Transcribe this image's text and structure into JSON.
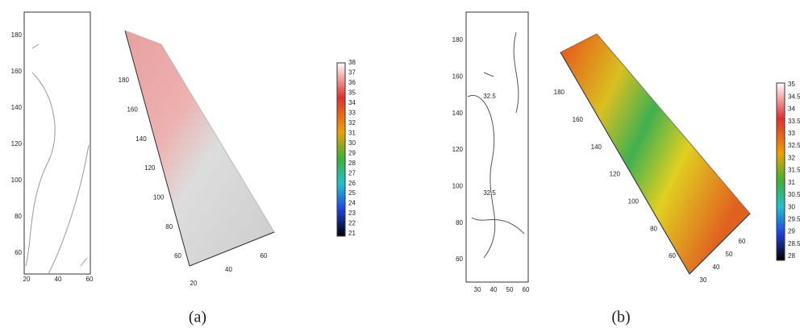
{
  "panels": [
    {
      "caption": "(a)",
      "contour": {
        "yticks": [
          180,
          160,
          140,
          120,
          100,
          80,
          60
        ],
        "xticks": [
          20,
          40,
          60
        ]
      },
      "surface": {
        "yticks": [
          180,
          160,
          140,
          120,
          100,
          80,
          60
        ],
        "xticks": [
          20,
          40,
          60
        ]
      },
      "colorbar": [
        38,
        37,
        36,
        35,
        34,
        33,
        32,
        31,
        30,
        29,
        28,
        27,
        26,
        25,
        24,
        23,
        22,
        21
      ]
    },
    {
      "caption": "(b)",
      "contour": {
        "yticks": [
          180,
          160,
          140,
          120,
          100,
          80,
          60
        ],
        "xticks": [
          30,
          40,
          50,
          60
        ],
        "labels": [
          32.5,
          32.5
        ]
      },
      "surface": {
        "yticks": [
          180,
          160,
          140,
          120,
          100,
          80,
          60
        ],
        "xticks": [
          30,
          40,
          50,
          60
        ]
      },
      "colorbar": [
        35,
        34.5,
        34,
        33.5,
        33,
        32.5,
        32,
        31.5,
        31,
        30.5,
        30,
        29.5,
        29,
        28.5,
        28
      ]
    }
  ]
}
